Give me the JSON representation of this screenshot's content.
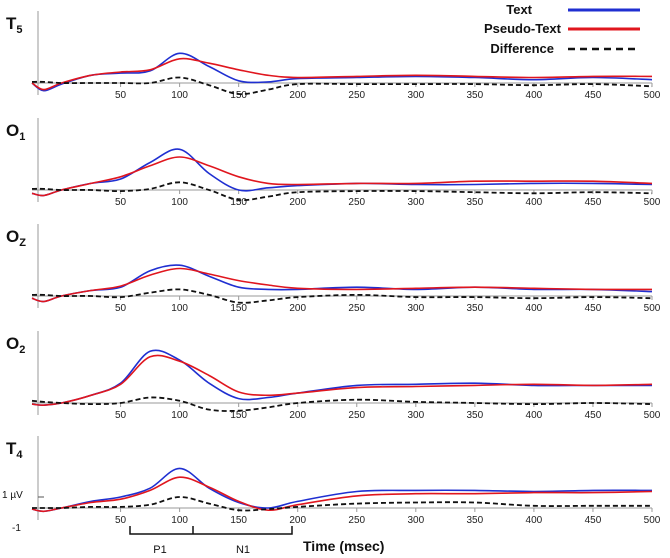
{
  "chart_data": {
    "type": "line",
    "xlabel": "Time (msec)",
    "x_ticks": [
      50,
      100,
      150,
      200,
      250,
      300,
      350,
      400,
      450,
      500
    ],
    "xlim": [
      -25,
      500
    ],
    "scale_bar": {
      "positive_label": "1 µV",
      "negative_label": "-1"
    },
    "components": [
      {
        "label": "P1",
        "range": [
          65,
          125
        ]
      },
      {
        "label": "N1",
        "range": [
          125,
          205
        ]
      }
    ],
    "legend": [
      {
        "name": "Text",
        "color": "#1f2fd1",
        "style": "solid"
      },
      {
        "name": "Pseudo-Text",
        "color": "#e0161e",
        "style": "solid"
      },
      {
        "name": "Difference",
        "color": "#111111",
        "style": "dashed"
      }
    ],
    "channels": [
      {
        "name": "T",
        "sub": "5",
        "x": [
          -25,
          -15,
          0,
          25,
          50,
          75,
          100,
          125,
          150,
          175,
          200,
          250,
          300,
          350,
          400,
          450,
          500
        ],
        "series": [
          {
            "name": "Text",
            "values": [
              0,
              -0.7,
              -0.1,
              0.7,
              0.9,
              1.1,
              2.7,
              1.5,
              0.2,
              0.1,
              0.4,
              0.5,
              0.6,
              0.5,
              0.3,
              0.5,
              0.3
            ]
          },
          {
            "name": "Pseudo-Text",
            "values": [
              0,
              -0.6,
              0,
              0.7,
              1.0,
              1.2,
              2.2,
              1.8,
              1.2,
              0.7,
              0.5,
              0.6,
              0.7,
              0.6,
              0.5,
              0.6,
              0.6
            ]
          },
          {
            "name": "Difference",
            "values": [
              0.1,
              0.1,
              0,
              0,
              0,
              0,
              0.5,
              -0.2,
              -1.0,
              -0.6,
              -0.1,
              -0.1,
              -0.1,
              -0.1,
              -0.2,
              -0.1,
              -0.3
            ]
          }
        ]
      },
      {
        "name": "O",
        "sub": "1",
        "x": [
          -25,
          -15,
          0,
          25,
          50,
          75,
          100,
          125,
          150,
          175,
          200,
          250,
          300,
          350,
          400,
          450,
          500
        ],
        "series": [
          {
            "name": "Text",
            "values": [
              -0.3,
              -0.5,
              0,
              0.6,
              1.0,
              2.5,
              3.7,
              1.5,
              0,
              0.2,
              0.4,
              0.6,
              0.5,
              0.5,
              0.6,
              0.6,
              0.5
            ]
          },
          {
            "name": "Pseudo-Text",
            "values": [
              -0.3,
              -0.5,
              0,
              0.6,
              1.2,
              2.2,
              3.0,
              2.2,
              1.2,
              0.6,
              0.5,
              0.6,
              0.6,
              0.8,
              0.8,
              0.8,
              0.6
            ]
          },
          {
            "name": "Difference",
            "values": [
              0.1,
              0.1,
              0,
              0,
              -0.1,
              0.1,
              0.7,
              0,
              -0.9,
              -0.6,
              -0.2,
              -0.1,
              -0.1,
              -0.2,
              -0.3,
              -0.2,
              -0.3
            ]
          }
        ]
      },
      {
        "name": "O",
        "sub": "Z",
        "x": [
          -25,
          -15,
          0,
          25,
          50,
          75,
          100,
          125,
          150,
          175,
          200,
          250,
          300,
          350,
          400,
          450,
          500
        ],
        "series": [
          {
            "name": "Text",
            "values": [
              -0.2,
              -0.5,
              0,
              0.5,
              0.8,
              2.3,
              2.8,
              1.8,
              0.8,
              0.6,
              0.6,
              0.8,
              0.6,
              0.8,
              0.6,
              0.6,
              0.4
            ]
          },
          {
            "name": "Pseudo-Text",
            "values": [
              -0.2,
              -0.5,
              0,
              0.5,
              0.9,
              1.9,
              2.5,
              2.0,
              1.4,
              1.0,
              0.7,
              0.6,
              0.7,
              0.8,
              0.7,
              0.6,
              0.6
            ]
          },
          {
            "name": "Difference",
            "values": [
              0.1,
              0.1,
              0,
              0,
              -0.1,
              0.3,
              0.6,
              0.1,
              -0.6,
              -0.4,
              -0.1,
              0.1,
              -0.1,
              -0.1,
              -0.2,
              -0.1,
              -0.2
            ]
          }
        ]
      },
      {
        "name": "O",
        "sub": "2",
        "x": [
          -25,
          -15,
          0,
          25,
          50,
          75,
          100,
          125,
          150,
          175,
          200,
          250,
          300,
          350,
          400,
          450,
          500
        ],
        "series": [
          {
            "name": "Text",
            "values": [
              -0.1,
              -0.2,
              0,
              0.7,
              1.8,
              4.7,
              3.9,
              1.8,
              0.4,
              0.5,
              0.9,
              1.6,
              1.7,
              1.8,
              1.6,
              1.6,
              1.6
            ]
          },
          {
            "name": "Pseudo-Text",
            "values": [
              -0.1,
              -0.2,
              0,
              0.7,
              1.7,
              4.2,
              3.8,
              2.5,
              1.0,
              0.7,
              0.9,
              1.4,
              1.5,
              1.6,
              1.7,
              1.6,
              1.7
            ]
          },
          {
            "name": "Difference",
            "values": [
              0.2,
              0.1,
              0,
              -0.1,
              0,
              0.5,
              0.2,
              -0.6,
              -0.7,
              -0.4,
              0,
              0.3,
              0.1,
              0,
              -0.1,
              0,
              -0.1
            ]
          }
        ]
      },
      {
        "name": "T",
        "sub": "4",
        "x": [
          -25,
          -15,
          0,
          25,
          50,
          75,
          100,
          125,
          150,
          175,
          200,
          250,
          300,
          350,
          400,
          450,
          500
        ],
        "series": [
          {
            "name": "Text",
            "values": [
              -0.1,
              -0.3,
              0,
              0.6,
              1.0,
              1.8,
              3.6,
              1.8,
              0.5,
              0,
              0.6,
              1.5,
              1.6,
              1.6,
              1.5,
              1.6,
              1.6
            ]
          },
          {
            "name": "Pseudo-Text",
            "values": [
              -0.1,
              -0.3,
              0,
              0.5,
              0.8,
              1.6,
              2.8,
              1.9,
              0.6,
              -0.2,
              0.3,
              1.1,
              1.3,
              1.3,
              1.4,
              1.4,
              1.5
            ]
          },
          {
            "name": "Difference",
            "values": [
              0,
              0,
              0,
              0.1,
              0.1,
              0.3,
              1.0,
              0.4,
              -0.2,
              -0.1,
              0.1,
              0.4,
              0.5,
              0.5,
              0.2,
              0.2,
              0.2
            ]
          }
        ]
      }
    ]
  }
}
